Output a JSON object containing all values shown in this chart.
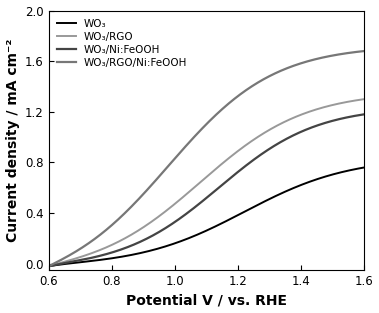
{
  "title": "",
  "xlabel": "Potential V / vs. RHE",
  "ylabel": "Current density / mA cm⁻²",
  "xlim": [
    0.6,
    1.6
  ],
  "ylim": [
    -0.05,
    2.0
  ],
  "yticks": [
    0.0,
    0.4,
    0.8,
    1.2,
    1.6,
    2.0
  ],
  "xticks": [
    0.6,
    0.8,
    1.0,
    1.2,
    1.4,
    1.6
  ],
  "curves": [
    {
      "label": "WO₃",
      "color": "#000000",
      "linewidth": 1.4,
      "plateau": 0.76,
      "inflection": 1.22,
      "steepness": 6.0
    },
    {
      "label": "WO₃/RGO",
      "color": "#999999",
      "linewidth": 1.4,
      "plateau": 1.3,
      "inflection": 1.08,
      "steepness": 6.0
    },
    {
      "label": "WO₃/Ni:FeOOH",
      "color": "#444444",
      "linewidth": 1.6,
      "plateau": 1.18,
      "inflection": 1.14,
      "steepness": 6.5
    },
    {
      "label": "WO₃/RGO/Ni:FeOOH",
      "color": "#777777",
      "linewidth": 1.6,
      "plateau": 1.68,
      "inflection": 0.98,
      "steepness": 6.0
    }
  ],
  "legend_fontsize": 7.5,
  "axis_fontsize": 10,
  "tick_fontsize": 8.5,
  "background_color": "#ffffff"
}
